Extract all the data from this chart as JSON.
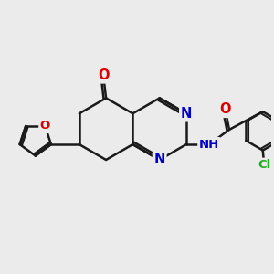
{
  "bg_color": "#ebebeb",
  "bond_color": "#1a1a1a",
  "bond_width": 1.8,
  "atom_colors": {
    "O": "#dd0000",
    "N": "#0000cc",
    "Cl": "#22aa22",
    "C": "#1a1a1a",
    "H": "#1a1a1a"
  },
  "font_size": 9.5
}
